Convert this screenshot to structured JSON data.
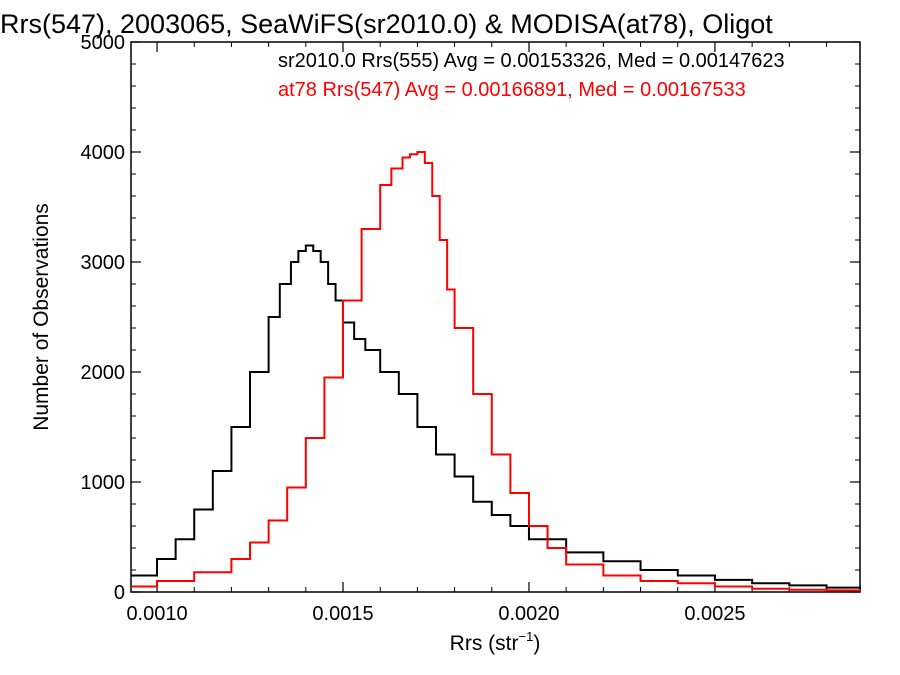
{
  "chart_data": {
    "type": "line",
    "step": true,
    "title": "Rrs(547), 2003065, SeaWiFS(sr2010.0) & MODISA(at78), Oligot",
    "xlabel_base": "Rrs (str",
    "xlabel_sup": "−1",
    "xlabel_close": ")",
    "ylabel": "Number of Observations",
    "xlim": [
      0.00093,
      0.00289
    ],
    "ylim": [
      0,
      5000
    ],
    "x_ticks": [
      0.001,
      0.0015,
      0.002,
      0.0025
    ],
    "x_tick_labels": [
      "0.0010",
      "0.0015",
      "0.0020",
      "0.0025"
    ],
    "y_ticks": [
      0,
      1000,
      2000,
      3000,
      4000,
      5000
    ],
    "y_tick_labels": [
      "0",
      "1000",
      "2000",
      "3000",
      "4000",
      "5000"
    ],
    "grid": false,
    "annotations": [
      {
        "text": "sr2010.0 Rrs(555) Avg = 0.00153326, Med = 0.00147623",
        "color": "#000000"
      },
      {
        "text": "at78 Rrs(547) Avg = 0.00166891, Med = 0.00167533",
        "color": "#ff0000"
      }
    ],
    "series": [
      {
        "color": "#000000",
        "x": [
          0.00093,
          0.001,
          0.00105,
          0.0011,
          0.00115,
          0.0012,
          0.00125,
          0.0013,
          0.00133,
          0.00136,
          0.00138,
          0.0014,
          0.00142,
          0.00144,
          0.00146,
          0.00148,
          0.0015,
          0.00153,
          0.00156,
          0.0016,
          0.00165,
          0.0017,
          0.00175,
          0.0018,
          0.00185,
          0.0019,
          0.00195,
          0.002,
          0.0021,
          0.0022,
          0.0023,
          0.0024,
          0.0025,
          0.0026,
          0.0027,
          0.0028,
          0.00289
        ],
        "y": [
          150,
          300,
          480,
          750,
          1100,
          1500,
          2000,
          2500,
          2800,
          3000,
          3100,
          3150,
          3100,
          3000,
          2800,
          2650,
          2450,
          2300,
          2200,
          2000,
          1800,
          1500,
          1250,
          1050,
          820,
          700,
          600,
          480,
          360,
          280,
          200,
          150,
          110,
          80,
          60,
          40,
          30
        ]
      },
      {
        "color": "#ff0000",
        "x": [
          0.00093,
          0.001,
          0.0011,
          0.0012,
          0.00125,
          0.0013,
          0.00135,
          0.0014,
          0.00145,
          0.0015,
          0.00155,
          0.0016,
          0.00163,
          0.00166,
          0.00168,
          0.0017,
          0.00172,
          0.00174,
          0.00176,
          0.00178,
          0.0018,
          0.00185,
          0.0019,
          0.00195,
          0.002,
          0.00205,
          0.0021,
          0.0022,
          0.0023,
          0.0024,
          0.0025,
          0.0026,
          0.0027,
          0.0028,
          0.00289
        ],
        "y": [
          50,
          100,
          180,
          300,
          450,
          650,
          950,
          1400,
          1950,
          2650,
          3300,
          3700,
          3850,
          3950,
          3980,
          4000,
          3900,
          3600,
          3200,
          2750,
          2400,
          1800,
          1250,
          900,
          600,
          400,
          250,
          150,
          100,
          80,
          50,
          30,
          20,
          15,
          10
        ]
      }
    ]
  }
}
